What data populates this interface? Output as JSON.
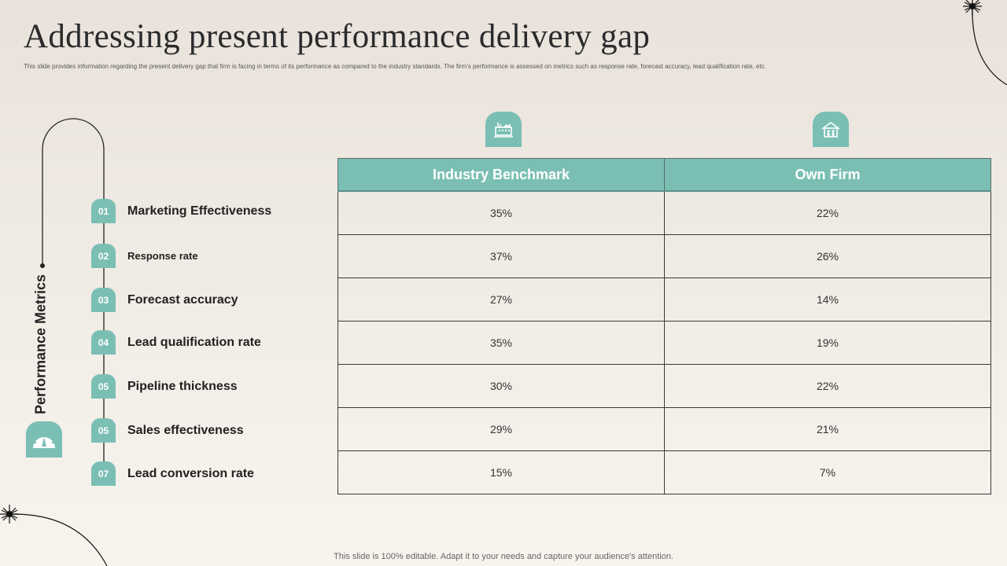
{
  "page": {
    "title": "Addressing present performance delivery gap",
    "subtitle": "This slide provides information regarding the present delivery gap that firm is facing in terms of its performance as compared  to the industry standards. The firm's performance is assessed on metrics such as response rate,  forecast accuracy, lead qualification rate, etc.",
    "footer": "This slide is 100% editable. Adapt it to your needs and capture your audience's attention."
  },
  "side_label": "Performance Metrics",
  "icons": {
    "gauge": "gauge-icon",
    "industry": "factory-icon",
    "firm": "house-icon"
  },
  "metrics": [
    {
      "num": "01",
      "label": "Marketing Effectiveness"
    },
    {
      "num": "02",
      "label": "Response rate"
    },
    {
      "num": "03",
      "label": "Forecast accuracy"
    },
    {
      "num": "04",
      "label": "Lead qualification rate"
    },
    {
      "num": "05",
      "label": "Pipeline thickness"
    },
    {
      "num": "05",
      "label": "Sales effectiveness"
    },
    {
      "num": "07",
      "label": "Lead conversion rate"
    }
  ],
  "table": {
    "headers": [
      "Industry Benchmark",
      "Own Firm"
    ],
    "rows": [
      [
        "35%",
        "22%"
      ],
      [
        "37%",
        "26%"
      ],
      [
        "27%",
        "14%"
      ],
      [
        "35%",
        "19%"
      ],
      [
        "30%",
        "22%"
      ],
      [
        "29%",
        "21%"
      ],
      [
        "15%",
        "7%"
      ]
    ]
  },
  "colors": {
    "accent": "#7bbfb4",
    "text": "#222222"
  }
}
